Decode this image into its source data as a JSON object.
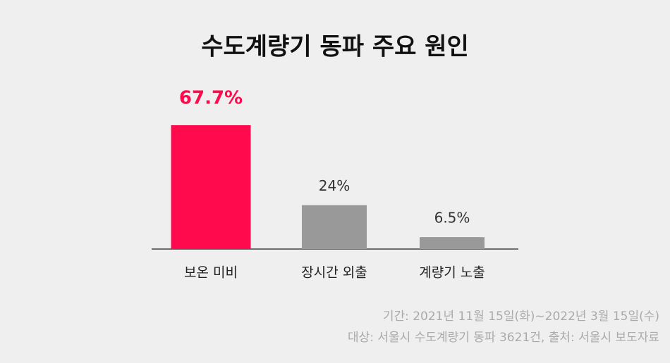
{
  "chart_data": {
    "type": "bar",
    "title": "수도계량기 동파 주요 원인",
    "categories": [
      "보온 미비",
      "장시간 외출",
      "계량기 노출"
    ],
    "values": [
      67.7,
      24,
      6.5
    ],
    "value_labels": [
      "67.7%",
      "24%",
      "6.5%"
    ],
    "colors": [
      "#ff0a4c",
      "#999999",
      "#999999"
    ],
    "notes": [
      "기간: 2021년 11월 15일(화)~2022년 3월 15일(수)",
      "대상: 서울시 수도계량기 동파 3621건, 출처: 서울시 보도자료"
    ]
  }
}
